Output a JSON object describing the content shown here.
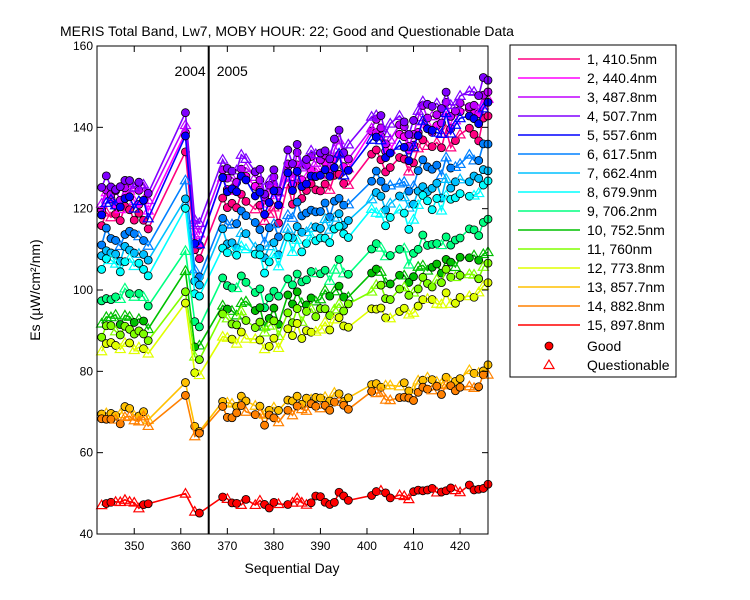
{
  "chart_data": {
    "type": "line",
    "title": "MERIS Total Band,  Lw7, MOBY HOUR: 22;  Good and Questionable Data",
    "xlabel": "Sequential Day",
    "ylabel": "Es (µW/cm²/nm)",
    "xlim": [
      342,
      426
    ],
    "ylim": [
      40,
      160
    ],
    "xticks": [
      350,
      360,
      370,
      380,
      390,
      400,
      410,
      420
    ],
    "yticks": [
      40,
      60,
      80,
      100,
      120,
      140,
      160
    ],
    "grid": false,
    "legend_position": "right-outside",
    "divider": {
      "x": 366,
      "left_label": "2004",
      "right_label": "2005"
    },
    "x": [
      343,
      344,
      345,
      346,
      347,
      348,
      349,
      350,
      351,
      352,
      353,
      361,
      363,
      364,
      369,
      370,
      371,
      372,
      373,
      374,
      376,
      377,
      378,
      379,
      380,
      381,
      383,
      384,
      385,
      386,
      387,
      388,
      389,
      390,
      391,
      392,
      393,
      394,
      395,
      396,
      401,
      402,
      403,
      404,
      405,
      407,
      408,
      409,
      410,
      411,
      412,
      413,
      414,
      415,
      416,
      417,
      418,
      419,
      420,
      422,
      423,
      424,
      425,
      426
    ],
    "series": [
      {
        "name": "1, 410.5nm",
        "color": "#ff0080",
        "base": 118
      },
      {
        "name": "2, 440.4nm",
        "color": "#ff00ff",
        "base": 122
      },
      {
        "name": "3, 487.8nm",
        "color": "#c000ff",
        "base": 124
      },
      {
        "name": "4, 507.7nm",
        "color": "#8000ff",
        "base": 126
      },
      {
        "name": "5, 557.6nm",
        "color": "#0000ff",
        "base": 121
      },
      {
        "name": "6, 617.5nm",
        "color": "#0080ff",
        "base": 113
      },
      {
        "name": "7, 662.4nm",
        "color": "#00c0ff",
        "base": 109
      },
      {
        "name": "8, 679.9nm",
        "color": "#00ffff",
        "base": 106
      },
      {
        "name": "9, 706.2nm",
        "color": "#00ff80",
        "base": 98
      },
      {
        "name": "10, 752.5nm",
        "color": "#00c000",
        "base": 93
      },
      {
        "name": "11,   760nm",
        "color": "#80ff00",
        "base": 90
      },
      {
        "name": "12, 773.8nm",
        "color": "#e0ff00",
        "base": 86
      },
      {
        "name": "13, 857.7nm",
        "color": "#ffc000",
        "base": 70
      },
      {
        "name": "14, 882.8nm",
        "color": "#ff8000",
        "base": 68
      },
      {
        "name": "15, 897.8nm",
        "color": "#ff0000",
        "base": 47
      }
    ],
    "legend_markers": [
      {
        "label": "Good",
        "marker": "circle",
        "color": "#ff0000"
      },
      {
        "label": "Questionable",
        "marker": "triangle",
        "color": "#ff0000"
      }
    ]
  }
}
